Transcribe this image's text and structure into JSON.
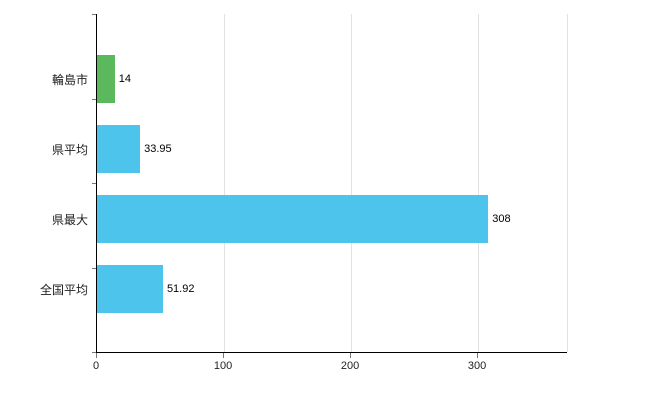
{
  "chart_data": {
    "type": "bar",
    "orientation": "horizontal",
    "title": "",
    "xlabel": "",
    "ylabel": "",
    "categories": [
      "輪島市",
      "県平均",
      "県最大",
      "全国平均"
    ],
    "values": [
      14,
      33.95,
      308,
      51.92
    ],
    "value_labels": [
      "14",
      "33.95",
      "308",
      "51.92"
    ],
    "bar_colors": [
      "#5cb85c",
      "#4cc4ec",
      "#4cc4ec",
      "#4cc4ec"
    ],
    "xlim": [
      0,
      370
    ],
    "x_ticks": [
      0,
      100,
      200,
      300
    ],
    "x_tick_labels": [
      "0",
      "100",
      "200",
      "300"
    ],
    "grid": true,
    "legend": "none"
  },
  "colors": {
    "gridline": "#e2e2e2",
    "axis": "#000000",
    "tick": "#777777",
    "text": "#222222"
  }
}
